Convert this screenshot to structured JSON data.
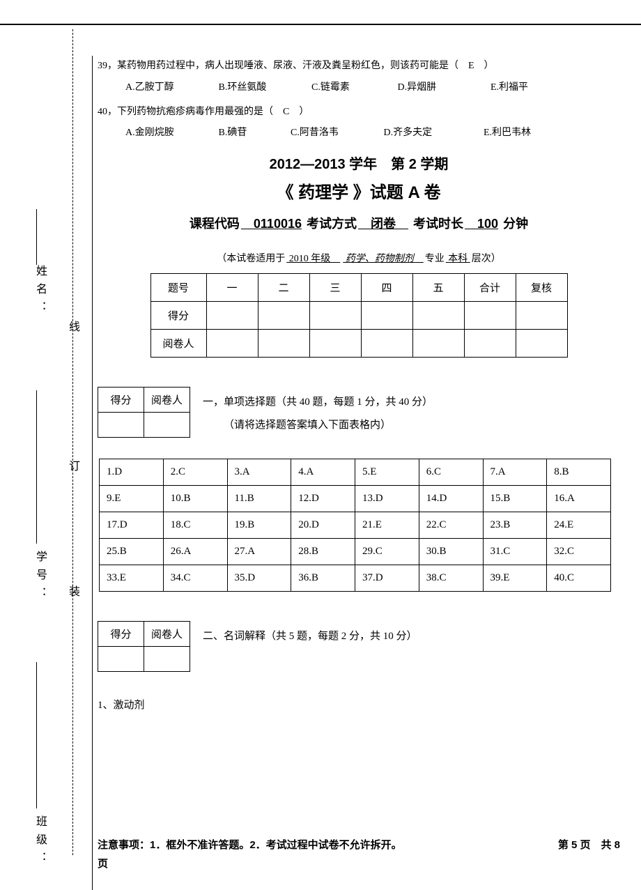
{
  "binding": {
    "labels": {
      "name": "姓名：",
      "id": "学号：",
      "class": "班级："
    },
    "marks": {
      "xian": "线",
      "ding": "订",
      "zhuang": "装"
    }
  },
  "questions": {
    "q39": {
      "num": "39，",
      "stem": "某药物用药过程中，病人出现唾液、尿液、汗液及粪呈粉红色，则该药可能是（ E ）",
      "opts": {
        "A": "A.乙胺丁醇",
        "B": "B.环丝氨酸",
        "C": "C.链霉素",
        "D": "D.异烟肼",
        "E": "E.利福平"
      }
    },
    "q40": {
      "num": "40，",
      "stem": "下列药物抗疱疹病毒作用最强的是（ C ）",
      "opts": {
        "A": "A.金刚烷胺",
        "B": "B.碘苷",
        "C": "C.阿昔洛韦",
        "D": "D.齐多夫定",
        "E": "E.利巴韦林"
      }
    }
  },
  "header": {
    "semester": "2012—2013 学年 第 2 学期",
    "paper": "《 药理学 》试题 A 卷",
    "course_label": "课程代码",
    "course_code": " 0110016",
    "exam_mode_label": "考试方式",
    "exam_mode": " 闭卷 ",
    "duration_label": "考试时长",
    "duration": " 100",
    "duration_unit": "分钟",
    "applies_pre": "（本试卷适用于",
    "applies_year": " 2010 年级 ",
    "applies_major": " 药学、药物制剂 ",
    "applies_suf1": "专业",
    "applies_level": " 本科 ",
    "applies_suf2": "层次）"
  },
  "score_headers": {
    "num": "题号",
    "score": "得分",
    "marker": "阅卷人",
    "cols": [
      "一",
      "二",
      "三",
      "四",
      "五",
      "合计",
      "复核"
    ]
  },
  "mini": {
    "score": "得分",
    "marker": "阅卷人"
  },
  "section1": {
    "title": "一，单项选择题（共 40 题，每题 1 分，共 40 分）",
    "note": "（请将选择题答案填入下面表格内）"
  },
  "answers": [
    [
      "1.D",
      "2.C",
      "3.A",
      "4.A",
      "5.E",
      "6.C",
      "7.A",
      "8.B"
    ],
    [
      "9.E",
      "10.B",
      "11.B",
      "12.D",
      "13.D",
      "14.D",
      "15.B",
      "16.A"
    ],
    [
      "17.D",
      "18.C",
      "19.B",
      "20.D",
      "21.E",
      "22.C",
      "23.B",
      "24.E"
    ],
    [
      "25.B",
      "26.A",
      "27.A",
      "28.B",
      "29.C",
      "30.B",
      "31.C",
      "32.C"
    ],
    [
      "33.E",
      "34.C",
      "35.D",
      "36.B",
      "37.D",
      "38.C",
      "39.E",
      "40.C"
    ]
  ],
  "section2": {
    "title": "二、名词解释（共 5 题，每题 2 分，共 10 分）"
  },
  "term1": "1、激动剂",
  "footer": {
    "note": "注意事项：1．框外不准许答题。2．考试过程中试卷不允许拆开。",
    "page": "第 5 页 共 8",
    "page2": "页"
  }
}
